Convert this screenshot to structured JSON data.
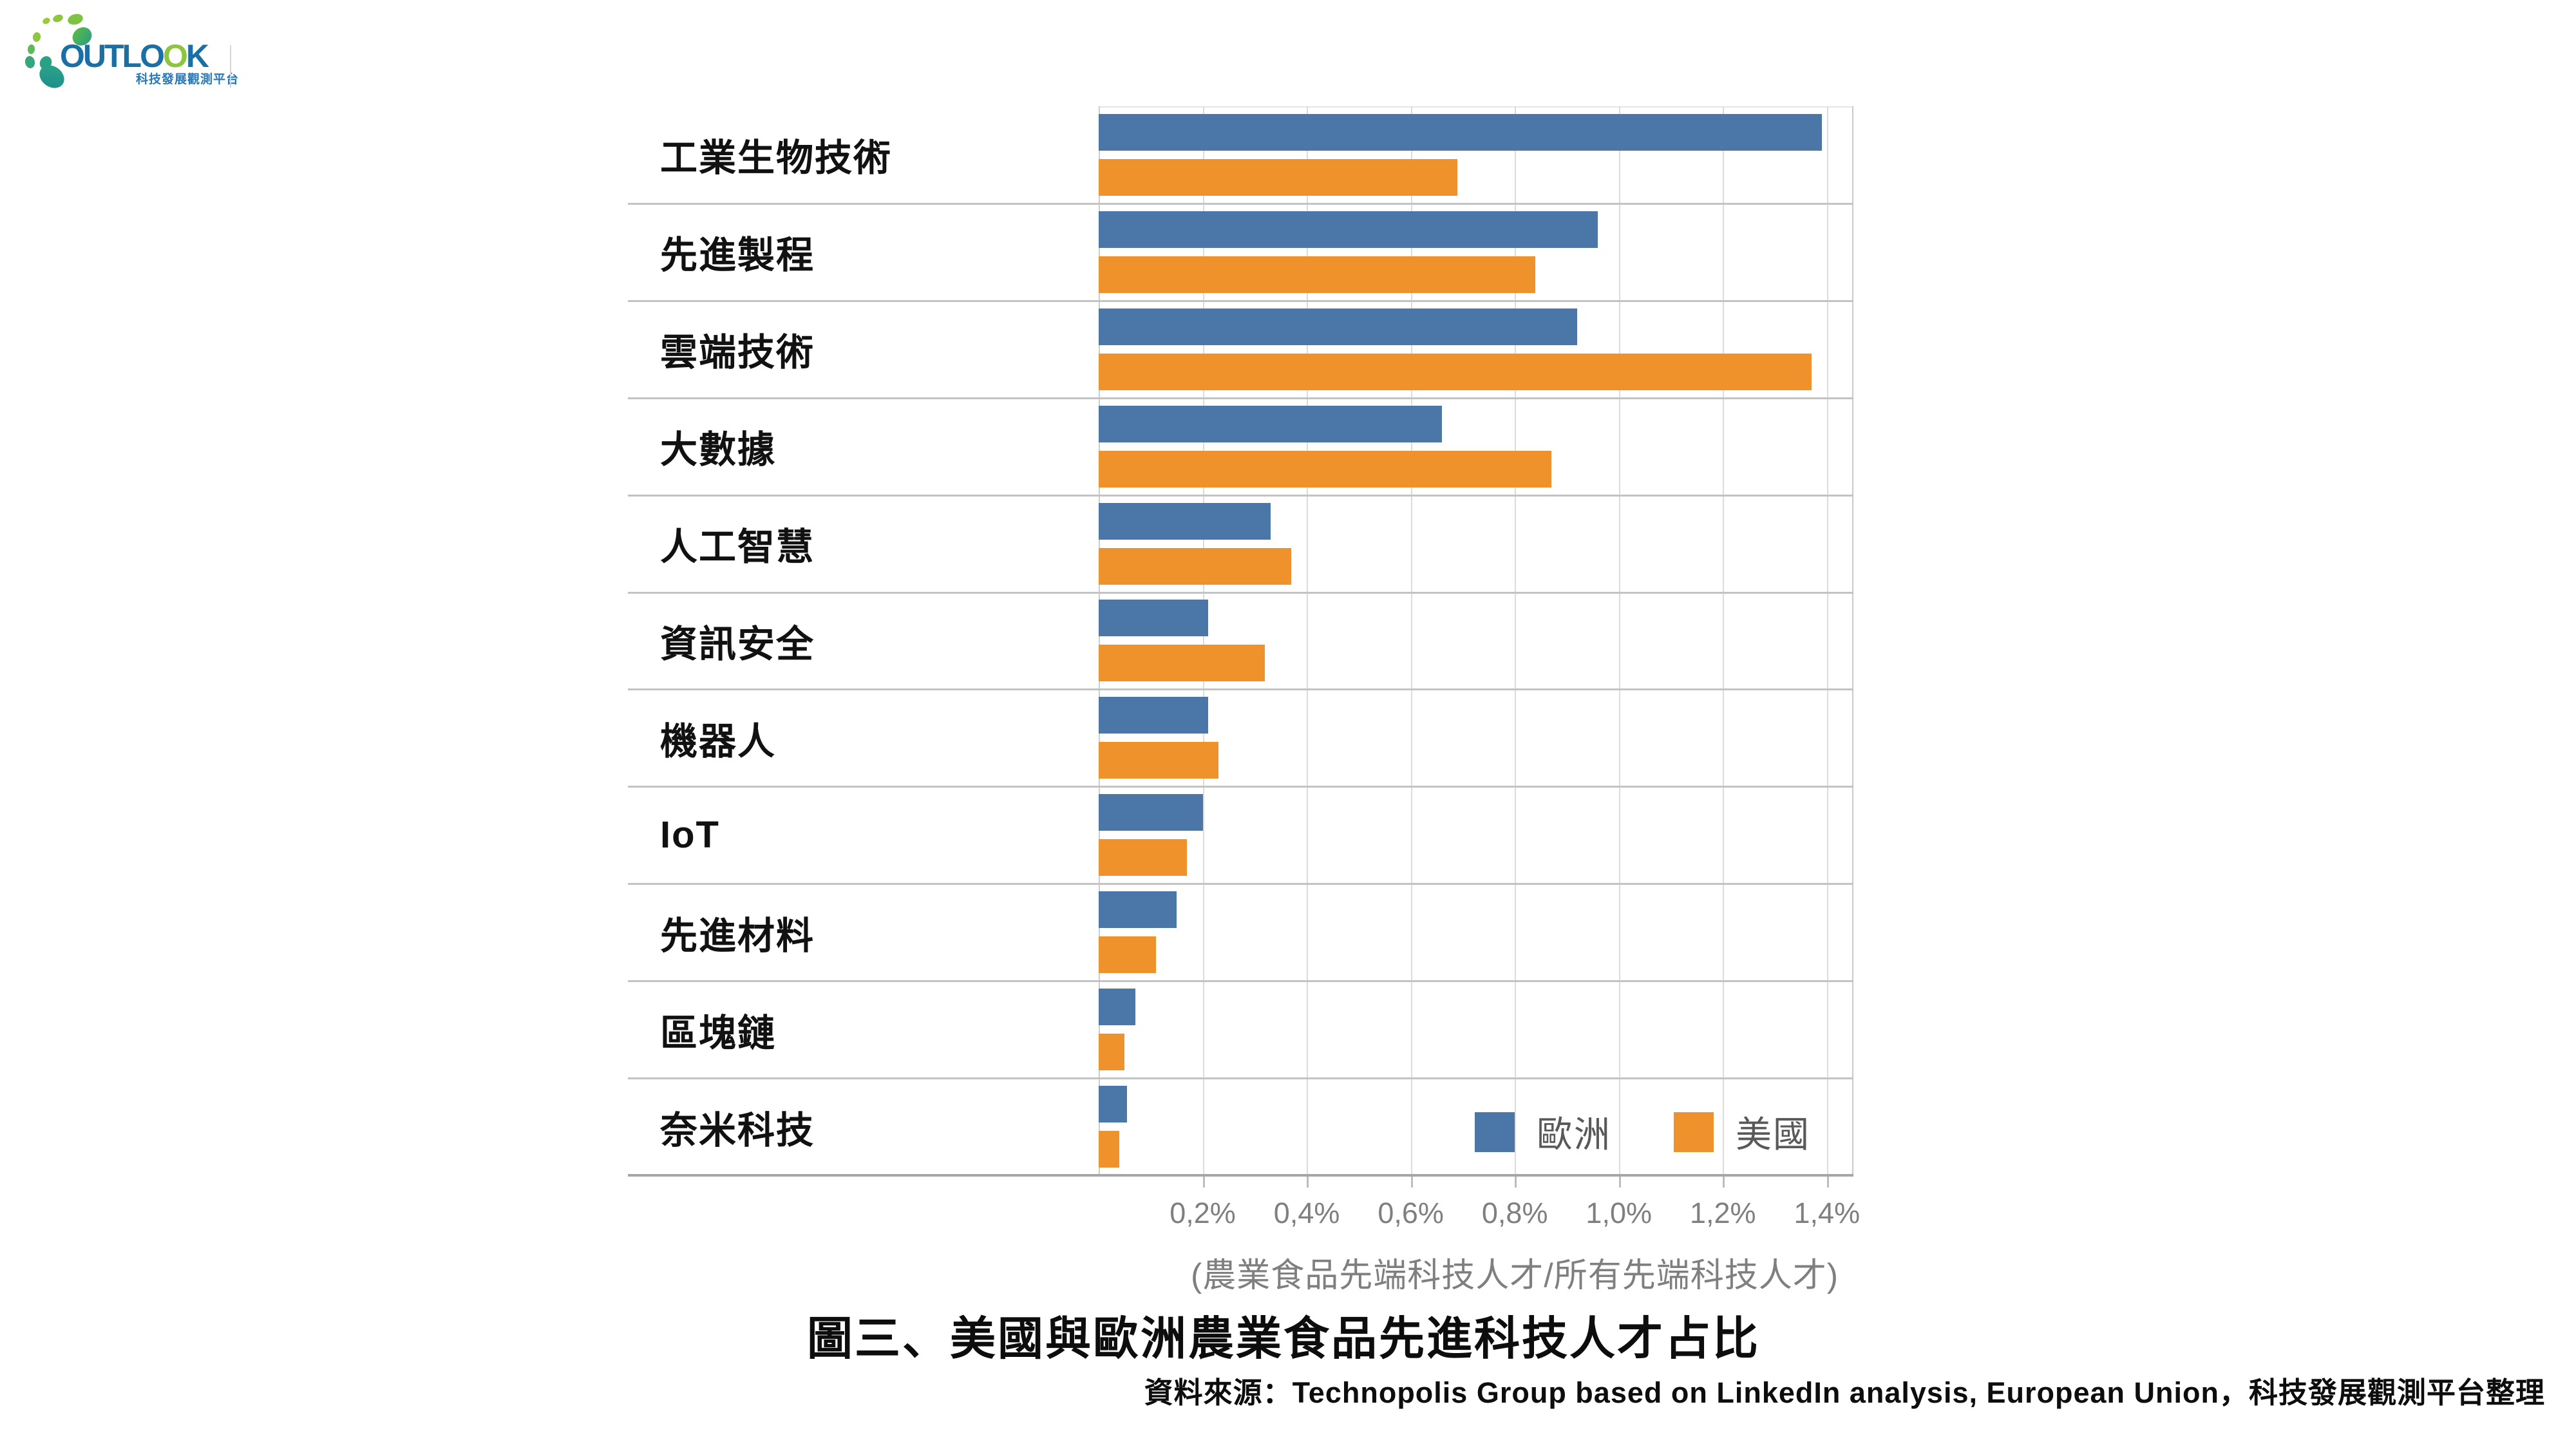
{
  "logo": {
    "brand": "OUTLOOK",
    "brand_part1": "OUTLO",
    "brand_green_o": "O",
    "brand_part2": "K",
    "subtitle": "科技發展觀測平台"
  },
  "chart_data": {
    "type": "bar",
    "orientation": "horizontal",
    "title": "圖三、美國與歐洲農業食品先進科技人才占比",
    "xlabel": "(農業食品先端科技人才/所有先端科技人才)",
    "source": "資料來源：Technopolis Group based on LinkedIn analysis, European Union，科技發展觀測平台整理",
    "categories": [
      "工業生物技術",
      "先進製程",
      "雲端技術",
      "大數據",
      "人工智慧",
      "資訊安全",
      "機器人",
      "IoT",
      "先進材料",
      "區塊鏈",
      "奈米科技"
    ],
    "series": [
      {
        "name": "歐洲",
        "color": "#4A77A8",
        "values": [
          1.39,
          0.96,
          0.92,
          0.66,
          0.33,
          0.21,
          0.21,
          0.2,
          0.15,
          0.07,
          0.055
        ]
      },
      {
        "name": "美國",
        "color": "#F0922C",
        "values": [
          0.69,
          0.84,
          1.37,
          0.87,
          0.37,
          0.32,
          0.23,
          0.17,
          0.11,
          0.05,
          0.04
        ]
      }
    ],
    "unit": "%",
    "xlim": [
      0,
      1.451
    ],
    "xticks": [
      {
        "value": 0.2,
        "label": "0,2%"
      },
      {
        "value": 0.4,
        "label": "0,4%"
      },
      {
        "value": 0.6,
        "label": "0,6%"
      },
      {
        "value": 0.8,
        "label": "0,8%"
      },
      {
        "value": 1.0,
        "label": "1,0%"
      },
      {
        "value": 1.2,
        "label": "1,2%"
      },
      {
        "value": 1.4,
        "label": "1,4%"
      }
    ],
    "grid": true,
    "legend_position": "inside-bottom-right",
    "legend": [
      {
        "label": "歐洲",
        "color": "#4A77A8"
      },
      {
        "label": "美國",
        "color": "#F0922C"
      }
    ]
  }
}
